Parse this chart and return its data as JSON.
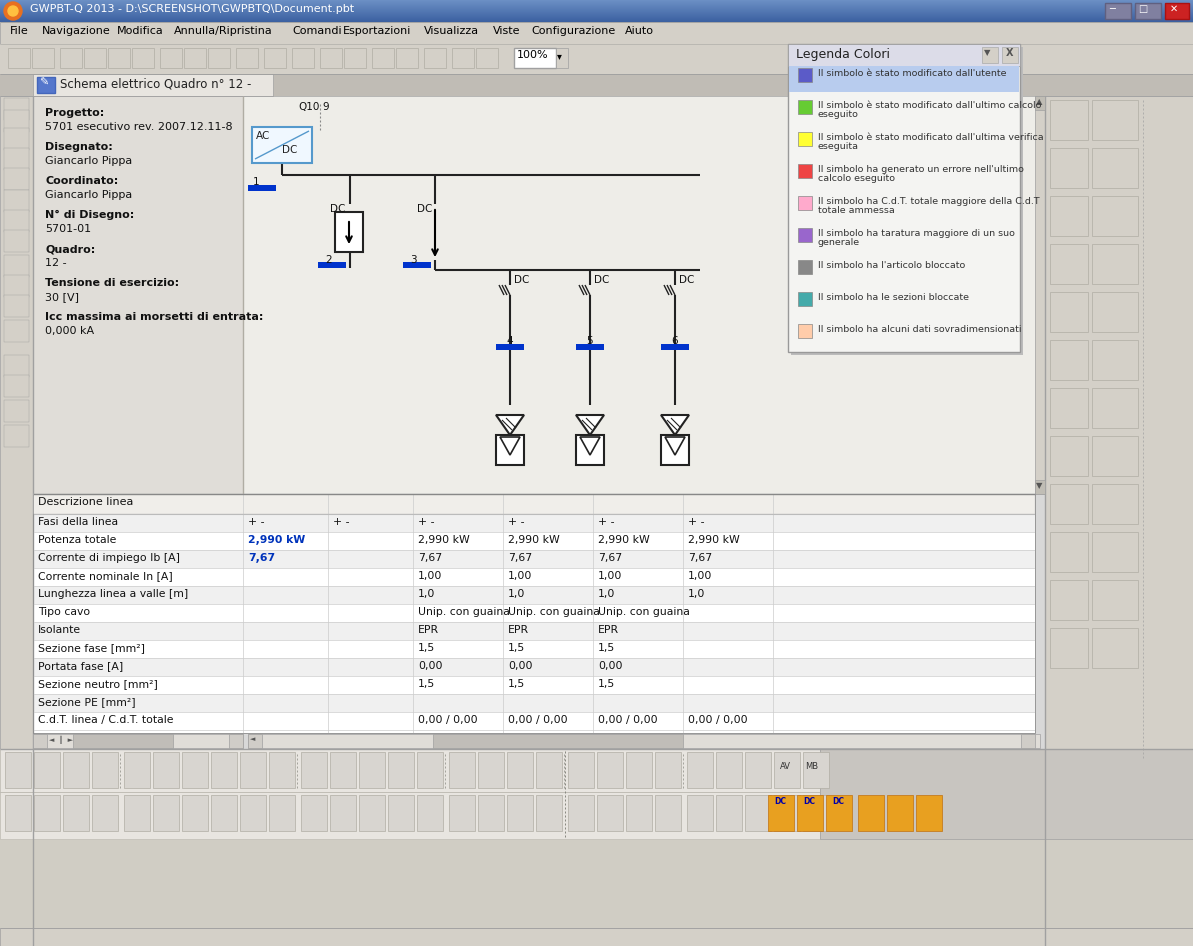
{
  "title_bar": "GWPBT-Q 2013 - D:\\SCREENSHOT\\GWPBTQ\\Document.pbt",
  "menu_items": [
    "File",
    "Navigazione",
    "Modifica",
    "Annulla/Ripristina",
    "Comandi",
    "Esportazioni",
    "Visualizza",
    "Viste",
    "Configurazione",
    "Aiuto"
  ],
  "tab_title": "Schema elettrico Quadro n° 12 -",
  "project_info_labels": [
    "Progetto:",
    "Disegnato:",
    "Coordinato:",
    "N° di Disegno:",
    "Quadro:",
    "Tensione di esercizio:",
    "Icc massima ai morsetti di entrata:"
  ],
  "project_info_values": [
    "5701 esecutivo rev. 2007.12.11-8",
    "Giancarlo Pippa",
    "Giancarlo Pippa",
    "5701-01",
    "12 -",
    "30 [V]",
    "0,000 kA"
  ],
  "legend_title": "Legenda Colori",
  "legend_items": [
    {
      "color": "#5b5bc8",
      "text": "Il simbolo è stato modificato dall'utente"
    },
    {
      "color": "#66cc33",
      "text": "Il simbolo è stato modificato dall'ultimo calcolo\neseguito"
    },
    {
      "color": "#ffff33",
      "text": "Il simbolo è stato modificato dall'ultima verifica\neseguita"
    },
    {
      "color": "#ee4444",
      "text": "Il simbolo ha generato un errore nell'ultimo\ncalcolo eseguito"
    },
    {
      "color": "#ffaacc",
      "text": "Il simbolo ha C.d.T. totale maggiore della C.d.T\ntotale ammessa"
    },
    {
      "color": "#9966cc",
      "text": "Il simbolo ha taratura maggiore di un suo\ngenerale"
    },
    {
      "color": "#888888",
      "text": "Il simbolo ha l'articolo bloccato"
    },
    {
      "color": "#44aaaa",
      "text": "Il simbolo ha le sezioni bloccate"
    },
    {
      "color": "#ffccaa",
      "text": "Il simbolo ha alcuni dati sovradimensionati"
    }
  ],
  "table_rows": [
    {
      "label": "Descrizione linea",
      "cols": [
        "",
        "",
        "",
        "",
        "",
        ""
      ]
    },
    {
      "label": "Fasi della linea",
      "cols": [
        "+ -",
        "+ -",
        "+ -",
        "+ -",
        "+ -",
        "+ -"
      ]
    },
    {
      "label": "Potenza totale",
      "cols": [
        "2,990 kW",
        "",
        "2,990 kW",
        "2,990 kW",
        "2,990 kW",
        "2,990 kW"
      ]
    },
    {
      "label": "Corrente di impiego Ib [A]",
      "cols": [
        "7,67",
        "",
        "7,67",
        "7,67",
        "7,67",
        "7,67"
      ]
    },
    {
      "label": "Corrente nominale In [A]",
      "cols": [
        "",
        "",
        "1,00",
        "1,00",
        "1,00",
        "1,00"
      ]
    },
    {
      "label": "Lunghezza linea a valle [m]",
      "cols": [
        "",
        "",
        "1,0",
        "1,0",
        "1,0",
        "1,0"
      ]
    },
    {
      "label": "Tipo cavo",
      "cols": [
        "",
        "",
        "Unip. con guaina",
        "Unip. con guaina",
        "Unip. con guaina",
        ""
      ]
    },
    {
      "label": "Isolante",
      "cols": [
        "",
        "",
        "EPR",
        "EPR",
        "EPR",
        ""
      ]
    },
    {
      "label": "Sezione fase [mm²]",
      "cols": [
        "",
        "",
        "1,5",
        "1,5",
        "1,5",
        ""
      ]
    },
    {
      "label": "Portata fase [A]",
      "cols": [
        "",
        "",
        "0,00",
        "0,00",
        "0,00",
        ""
      ]
    },
    {
      "label": "Sezione neutro [mm²]",
      "cols": [
        "",
        "",
        "1,5",
        "1,5",
        "1,5",
        ""
      ]
    },
    {
      "label": "Sezione PE [mm²]",
      "cols": [
        "",
        "",
        "",
        "",
        "",
        ""
      ]
    },
    {
      "label": "C.d.T. linea / C.d.T. totale",
      "cols": [
        "",
        "",
        "0,00 / 0,00",
        "0,00 / 0,00",
        "0,00 / 0,00",
        "0,00 / 0,00"
      ]
    }
  ],
  "bg_color": "#d8d8d8",
  "content_bg": "#e8e8e8",
  "circuit_bg": "#ececec",
  "table_bg": "#ffffff",
  "toolbar_bg": "#d0cdc4",
  "title_bar_gradient_top": "#6b8fc4",
  "title_bar_gradient_bot": "#3a5fa0",
  "legend_bg": "#f4f4f4",
  "legend_header_bg": "#e0e0ee",
  "selected_highlight": "#b8ccee",
  "blue_marker": "#0033cc",
  "circuit_line_color": "#222222",
  "ac_dc_box_border": "#5599cc",
  "table_row_alt": "#f0f0f0",
  "table_row_normal": "#ffffff",
  "table_sep_color": "#cccccc",
  "blue_text": "#0033bb"
}
